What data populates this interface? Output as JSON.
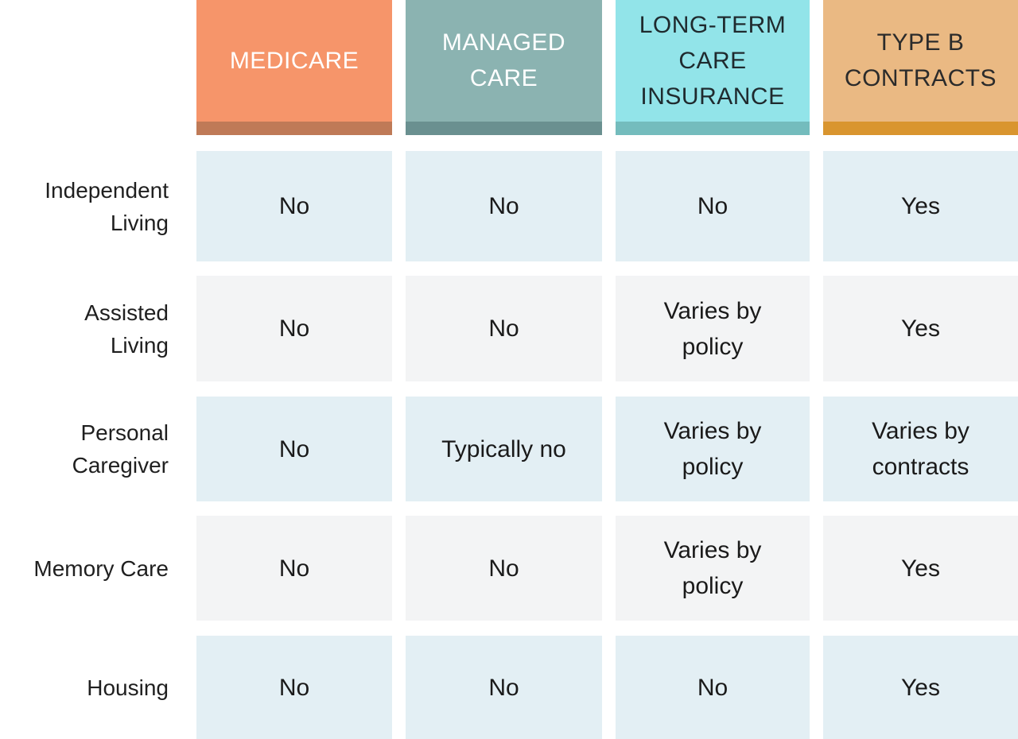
{
  "chart_data": {
    "type": "table",
    "columns": [
      {
        "label": "MEDICARE",
        "color": "#f6956a",
        "band": "#bf7a57",
        "text_color": "#ffffff"
      },
      {
        "label": "MANAGED\nCARE",
        "color": "#8bb3b1",
        "band": "#6a9090",
        "text_color": "#ffffff"
      },
      {
        "label": "LONG-TERM\nCARE\nINSURANCE",
        "color": "#92e4e9",
        "band": "#74bcbd",
        "text_color": "#1f2a2e"
      },
      {
        "label": "TYPE B\nCONTRACTS",
        "color": "#eab983",
        "band": "#d9952f",
        "text_color": "#2b2b2b"
      }
    ],
    "rows": [
      {
        "label": "Independent\nLiving",
        "values": [
          "No",
          "No",
          "No",
          "Yes"
        ]
      },
      {
        "label": "Assisted\nLiving",
        "values": [
          "No",
          "No",
          "Varies by\npolicy",
          "Yes"
        ]
      },
      {
        "label": "Personal\nCaregiver",
        "values": [
          "No",
          "Typically no",
          "Varies by\npolicy",
          "Varies by\ncontracts"
        ]
      },
      {
        "label": "Memory Care",
        "values": [
          "No",
          "No",
          "Varies by\npolicy",
          "Yes"
        ]
      },
      {
        "label": "Housing",
        "values": [
          "No",
          "No",
          "No",
          "Yes"
        ]
      }
    ],
    "row_colors": [
      "#e3eff4",
      "#f3f4f5",
      "#e3eff4",
      "#f3f4f5",
      "#e3eff4"
    ]
  }
}
